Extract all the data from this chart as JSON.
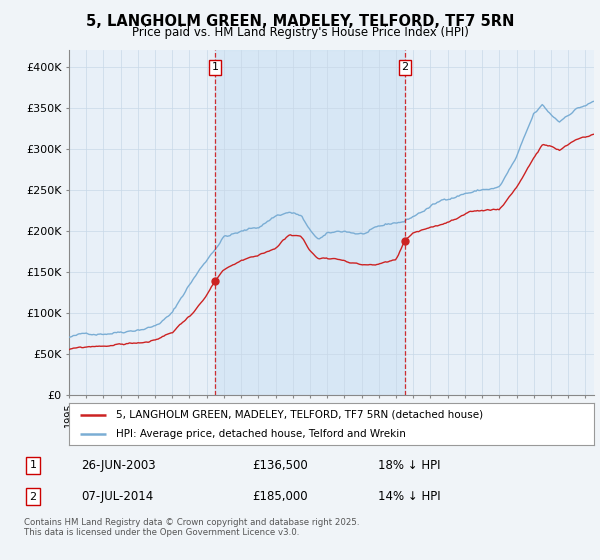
{
  "title": "5, LANGHOLM GREEN, MADELEY, TELFORD, TF7 5RN",
  "subtitle": "Price paid vs. HM Land Registry's House Price Index (HPI)",
  "ylim": [
    0,
    420000
  ],
  "xlim_start": 1995.0,
  "xlim_end": 2025.5,
  "hpi_color": "#7aadd4",
  "price_color": "#cc2222",
  "shade_color": "#d0e4f4",
  "marker1_date": 2003.48,
  "marker2_date": 2014.52,
  "marker1_price": 136500,
  "marker2_price": 185000,
  "marker1_note": "26-JUN-2003",
  "marker2_note": "07-JUL-2014",
  "marker1_pct": "18% ↓ HPI",
  "marker2_pct": "14% ↓ HPI",
  "legend_line1": "5, LANGHOLM GREEN, MADELEY, TELFORD, TF7 5RN (detached house)",
  "legend_line2": "HPI: Average price, detached house, Telford and Wrekin",
  "footer": "Contains HM Land Registry data © Crown copyright and database right 2025.\nThis data is licensed under the Open Government Licence v3.0.",
  "background_color": "#f0f4f8",
  "plot_bg_color": "#e8f0f8",
  "grid_color": "#c8d8e8"
}
